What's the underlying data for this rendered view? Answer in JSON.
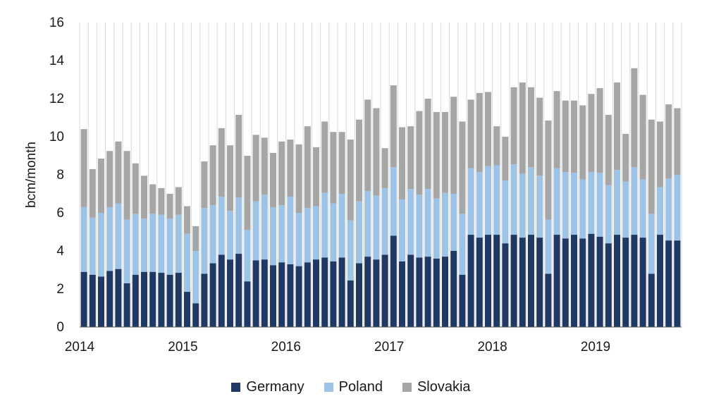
{
  "chart_data": {
    "type": "bar",
    "stacked": true,
    "ylabel": "bcm/month",
    "xlabel": "",
    "title": "",
    "ylim": [
      0,
      16
    ],
    "yticks": [
      0,
      2,
      4,
      6,
      8,
      10,
      12,
      14,
      16
    ],
    "xtick_labels": [
      "2014",
      "2015",
      "2016",
      "2017",
      "2018",
      "2019"
    ],
    "grid": "vertical",
    "legend_position": "bottom",
    "x_start": "2014-01",
    "categories": [
      "2014-01",
      "2014-02",
      "2014-03",
      "2014-04",
      "2014-05",
      "2014-06",
      "2014-07",
      "2014-08",
      "2014-09",
      "2014-10",
      "2014-11",
      "2014-12",
      "2015-01",
      "2015-02",
      "2015-03",
      "2015-04",
      "2015-05",
      "2015-06",
      "2015-07",
      "2015-08",
      "2015-09",
      "2015-10",
      "2015-11",
      "2015-12",
      "2016-01",
      "2016-02",
      "2016-03",
      "2016-04",
      "2016-05",
      "2016-06",
      "2016-07",
      "2016-08",
      "2016-09",
      "2016-10",
      "2016-11",
      "2016-12",
      "2017-01",
      "2017-02",
      "2017-03",
      "2017-04",
      "2017-05",
      "2017-06",
      "2017-07",
      "2017-08",
      "2017-09",
      "2017-10",
      "2017-11",
      "2017-12",
      "2018-01",
      "2018-02",
      "2018-03",
      "2018-04",
      "2018-05",
      "2018-06",
      "2018-07",
      "2018-08",
      "2018-09",
      "2018-10",
      "2018-11",
      "2018-12",
      "2019-01",
      "2019-02",
      "2019-03",
      "2019-04",
      "2019-05",
      "2019-06",
      "2019-07",
      "2019-08",
      "2019-09",
      "2019-10"
    ],
    "series": [
      {
        "name": "Germany",
        "color": "#1f3864",
        "values": [
          2.9,
          2.75,
          2.65,
          2.95,
          3.05,
          2.3,
          2.75,
          2.9,
          2.9,
          2.85,
          2.75,
          2.85,
          1.85,
          1.25,
          2.8,
          3.35,
          3.8,
          3.55,
          3.85,
          2.4,
          3.5,
          3.55,
          3.25,
          3.4,
          3.3,
          3.2,
          3.4,
          3.55,
          3.65,
          3.45,
          3.65,
          2.45,
          3.35,
          3.7,
          3.55,
          3.8,
          4.8,
          3.45,
          3.8,
          3.65,
          3.7,
          3.6,
          3.7,
          4.0,
          2.75,
          4.85,
          4.7,
          4.85,
          4.85,
          4.4,
          4.85,
          4.7,
          4.85,
          4.7,
          2.8,
          4.85,
          4.65,
          4.85,
          4.65,
          4.9,
          4.75,
          4.4,
          4.85,
          4.7,
          4.85,
          4.7,
          2.8,
          4.85,
          4.55,
          4.55
        ]
      },
      {
        "name": "Poland",
        "color": "#9dc3e6",
        "values": [
          3.4,
          3.0,
          3.35,
          3.35,
          3.45,
          3.35,
          3.2,
          2.8,
          3.05,
          3.05,
          2.95,
          3.05,
          3.05,
          2.75,
          3.45,
          3.05,
          3.05,
          2.55,
          2.95,
          2.7,
          3.1,
          3.4,
          3.05,
          3.0,
          3.55,
          2.8,
          2.85,
          2.8,
          3.4,
          3.05,
          3.35,
          3.15,
          3.25,
          3.45,
          3.35,
          3.5,
          3.6,
          3.25,
          3.45,
          3.3,
          3.55,
          3.15,
          3.35,
          3.0,
          3.2,
          3.5,
          3.45,
          3.6,
          3.65,
          3.3,
          3.7,
          3.35,
          3.55,
          3.25,
          2.85,
          3.5,
          3.5,
          3.25,
          3.1,
          3.25,
          3.35,
          3.05,
          3.4,
          2.95,
          3.55,
          3.05,
          3.15,
          2.5,
          3.25,
          3.45
        ]
      },
      {
        "name": "Slovakia",
        "color": "#a6a6a6",
        "values": [
          4.1,
          2.55,
          2.85,
          2.95,
          3.25,
          3.6,
          2.65,
          2.25,
          1.55,
          1.4,
          1.3,
          1.45,
          1.45,
          1.3,
          2.45,
          3.15,
          3.6,
          3.45,
          4.35,
          3.9,
          3.5,
          3.0,
          2.85,
          3.35,
          3.0,
          3.6,
          4.3,
          3.1,
          3.75,
          3.75,
          3.25,
          4.25,
          4.3,
          4.8,
          4.6,
          2.1,
          4.3,
          3.8,
          3.3,
          4.4,
          4.75,
          4.55,
          4.25,
          5.1,
          4.85,
          3.6,
          4.15,
          3.9,
          2.05,
          2.3,
          4.05,
          4.8,
          4.2,
          4.1,
          5.2,
          4.05,
          3.75,
          3.8,
          3.9,
          4.1,
          4.45,
          3.7,
          4.6,
          2.5,
          5.2,
          4.45,
          4.95,
          3.45,
          3.9,
          3.5
        ]
      }
    ]
  }
}
